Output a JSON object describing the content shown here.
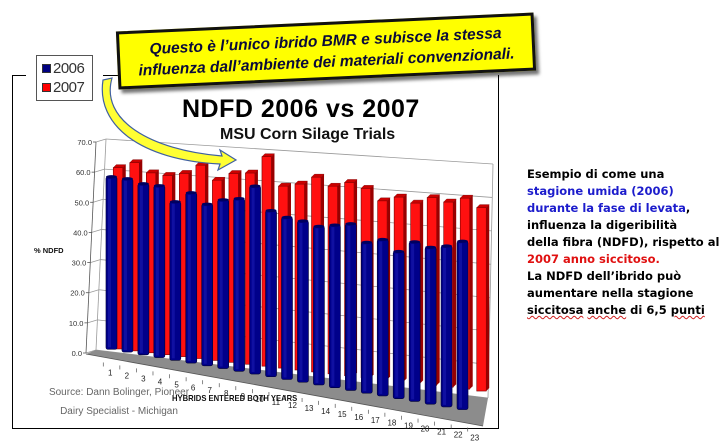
{
  "callout": {
    "line1": "Questo è l’unico ibrido BMR e subisce la stessa",
    "line2": "influenza dall’ambiente  dei materiali convenzionali.",
    "fill_color": "#ffff00"
  },
  "legend": {
    "items": [
      {
        "label": "2006",
        "color": "#000080"
      },
      {
        "label": "2007",
        "color": "#ff0000"
      }
    ]
  },
  "side_text": {
    "line1": "Esempio di come una",
    "line2_blue": "stagione umida (2006)",
    "line3_blue": "durante la fase di levata",
    "line3_suffix": ",",
    "line4": "influenza la digeribilità",
    "line5": "della fibra (NDFD), rispetto al",
    "line6_red": "2007 anno siccitoso.",
    "line7": "La NDFD dell’ibrido può",
    "line8": "aumentare nella stagione",
    "line9_a": "siccitosa",
    "line9_b": "anche",
    "line9_c": " di 6,5 ",
    "line9_d": "punti"
  },
  "source": {
    "line1": "Source:  Dann Bolinger, Pioneer",
    "line2": "Dairy Specialist - Michigan"
  },
  "chart_data": {
    "type": "bar",
    "style": "3d-clustered-column",
    "title": "NDFD 2006 vs 2007",
    "subtitle": "MSU Corn Silage Trials",
    "xlabel": "HYBRIDS ENTERED BOTH YEARS",
    "ylabel": "% NDFD",
    "ylim": [
      0,
      70
    ],
    "yticks": [
      "0.0",
      "10.0",
      "20.0",
      "30.0",
      "40.0",
      "50.0",
      "60.0",
      "70.0"
    ],
    "grid": true,
    "legend_position": "top-left",
    "categories": [
      "1",
      "2",
      "3",
      "4",
      "5",
      "6",
      "7",
      "8",
      "9",
      "10",
      "11",
      "12",
      "13",
      "14",
      "15",
      "16",
      "17",
      "18",
      "19",
      "20",
      "21",
      "22",
      "23"
    ],
    "series": [
      {
        "name": "2006",
        "color": "#000080",
        "values": [
          56,
          56,
          55,
          55,
          50.5,
          54,
          51,
          53,
          54,
          58.5,
          51.5,
          50,
          49.5,
          48.5,
          49.5,
          50.5,
          45.5,
          47,
          44,
          47.5,
          46.5,
          47.5,
          49.5
        ]
      },
      {
        "name": "2007",
        "color": "#ff0000",
        "values": [
          60,
          62,
          59,
          58.5,
          59.5,
          62.5,
          58,
          60.5,
          61,
          66.5,
          57.5,
          58.5,
          61,
          58.5,
          60,
          58.5,
          55,
          56.5,
          55,
          57,
          56,
          57.5,
          55
        ]
      }
    ],
    "annotation": {
      "target_category": "10",
      "text": "Questo è l’unico ibrido BMR e subisce la stessa influenza dall’ambiente  dei materiali convenzionali."
    }
  }
}
